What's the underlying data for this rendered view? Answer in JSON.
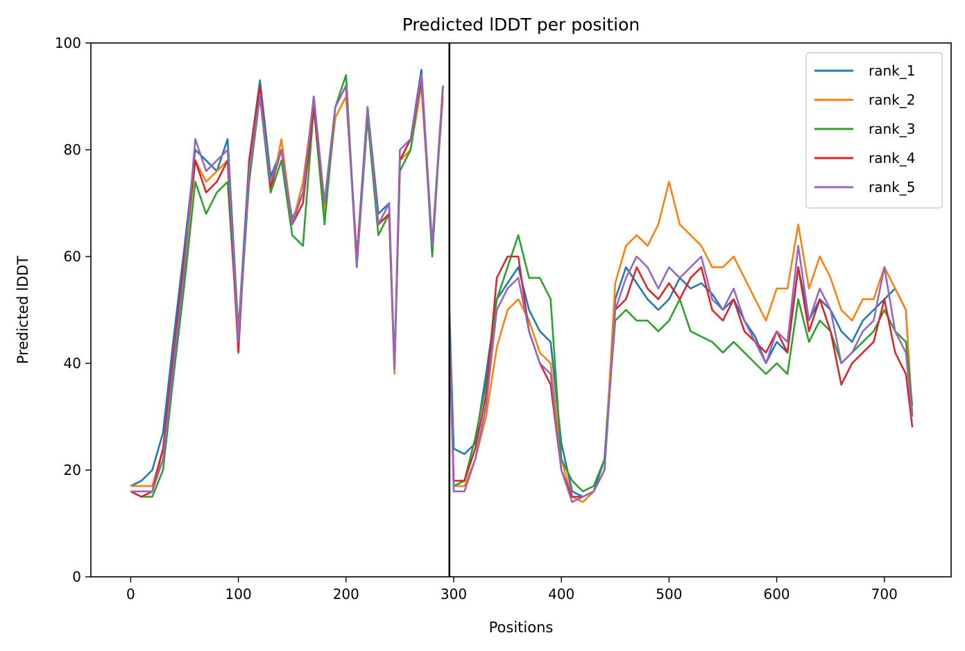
{
  "chart_data": {
    "type": "line",
    "title": "Predicted lDDT per position",
    "xlabel": "Positions",
    "ylabel": "Predicted lDDT",
    "xlim": [
      -37,
      762
    ],
    "ylim": [
      0,
      100
    ],
    "xticks": [
      0,
      100,
      200,
      300,
      400,
      500,
      600,
      700
    ],
    "yticks": [
      0,
      20,
      40,
      60,
      80,
      100
    ],
    "grid": false,
    "legend_position": "top-right",
    "vline": 296,
    "x": [
      0,
      10,
      20,
      30,
      40,
      50,
      60,
      70,
      80,
      90,
      100,
      110,
      120,
      130,
      140,
      150,
      160,
      170,
      180,
      190,
      200,
      210,
      220,
      230,
      240,
      245,
      250,
      260,
      270,
      280,
      290,
      296,
      300,
      310,
      320,
      330,
      340,
      350,
      360,
      370,
      380,
      390,
      400,
      410,
      420,
      430,
      440,
      450,
      460,
      470,
      480,
      490,
      500,
      510,
      520,
      530,
      540,
      550,
      560,
      570,
      580,
      590,
      600,
      610,
      620,
      630,
      640,
      650,
      660,
      670,
      680,
      690,
      700,
      710,
      720,
      726
    ],
    "series": [
      {
        "name": "rank_1",
        "color": "#1f77b4",
        "values": [
          17,
          18,
          20,
          27,
          45,
          62,
          80,
          78,
          76,
          82,
          46,
          78,
          93,
          75,
          80,
          67,
          72,
          90,
          70,
          88,
          92,
          60,
          88,
          68,
          70,
          39,
          78,
          82,
          95,
          62,
          92,
          50,
          24,
          23,
          25,
          38,
          52,
          55,
          58,
          50,
          46,
          44,
          25,
          16,
          15,
          16,
          22,
          52,
          58,
          55,
          52,
          50,
          52,
          56,
          54,
          55,
          53,
          50,
          52,
          48,
          45,
          40,
          44,
          42,
          58,
          48,
          52,
          50,
          46,
          44,
          48,
          50,
          52,
          54,
          50,
          30
        ]
      },
      {
        "name": "rank_2",
        "color": "#ff7f0e",
        "values": [
          17,
          17,
          17,
          24,
          40,
          58,
          78,
          74,
          76,
          78,
          45,
          76,
          90,
          72,
          82,
          66,
          74,
          89,
          68,
          86,
          90,
          60,
          86,
          66,
          68,
          38,
          78,
          80,
          92,
          62,
          90,
          48,
          17,
          17,
          22,
          30,
          43,
          50,
          52,
          48,
          42,
          40,
          22,
          15,
          14,
          16,
          20,
          55,
          62,
          64,
          62,
          66,
          74,
          66,
          64,
          62,
          58,
          58,
          60,
          56,
          52,
          48,
          54,
          54,
          66,
          54,
          60,
          56,
          50,
          48,
          52,
          52,
          58,
          54,
          50,
          30
        ]
      },
      {
        "name": "rank_3",
        "color": "#2ca02c",
        "values": [
          16,
          15,
          15,
          20,
          38,
          55,
          74,
          68,
          72,
          74,
          44,
          74,
          90,
          72,
          78,
          64,
          62,
          88,
          66,
          88,
          94,
          58,
          86,
          64,
          68,
          39,
          76,
          80,
          94,
          60,
          92,
          46,
          17,
          18,
          26,
          36,
          52,
          58,
          64,
          56,
          56,
          52,
          22,
          18,
          16,
          17,
          22,
          48,
          50,
          48,
          48,
          46,
          48,
          52,
          46,
          45,
          44,
          42,
          44,
          42,
          40,
          38,
          40,
          38,
          52,
          44,
          48,
          46,
          40,
          42,
          44,
          46,
          50,
          46,
          44,
          32
        ]
      },
      {
        "name": "rank_4",
        "color": "#d62728",
        "values": [
          16,
          15,
          16,
          24,
          42,
          60,
          78,
          72,
          74,
          78,
          42,
          78,
          92,
          73,
          80,
          66,
          70,
          88,
          70,
          88,
          92,
          59,
          88,
          66,
          68,
          39,
          78,
          82,
          93,
          62,
          92,
          47,
          18,
          18,
          24,
          34,
          56,
          60,
          60,
          46,
          40,
          36,
          20,
          15,
          15,
          16,
          20,
          50,
          52,
          58,
          54,
          52,
          55,
          52,
          56,
          58,
          50,
          48,
          52,
          46,
          44,
          42,
          46,
          42,
          58,
          46,
          52,
          46,
          36,
          40,
          42,
          44,
          52,
          42,
          38,
          28
        ]
      },
      {
        "name": "rank_5",
        "color": "#9467bd",
        "values": [
          16,
          16,
          16,
          22,
          40,
          58,
          82,
          76,
          78,
          80,
          44,
          76,
          90,
          74,
          80,
          66,
          72,
          90,
          70,
          88,
          92,
          58,
          88,
          66,
          70,
          39,
          80,
          82,
          94,
          62,
          92,
          48,
          16,
          16,
          22,
          32,
          50,
          54,
          56,
          46,
          40,
          38,
          20,
          14,
          15,
          16,
          20,
          50,
          56,
          60,
          58,
          54,
          58,
          56,
          58,
          60,
          52,
          50,
          54,
          48,
          44,
          40,
          46,
          44,
          62,
          48,
          54,
          50,
          40,
          42,
          46,
          48,
          58,
          46,
          42,
          30
        ]
      }
    ]
  }
}
